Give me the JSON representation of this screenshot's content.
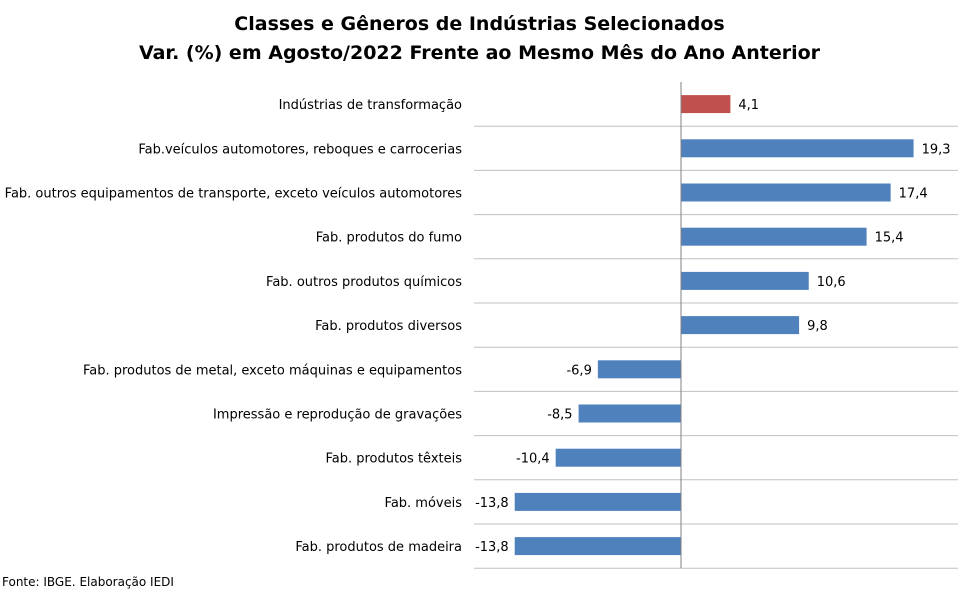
{
  "chart_data": {
    "type": "bar",
    "orientation": "horizontal",
    "title": "Classes e Gêneros de Indústrias Selecionados",
    "subtitle": "Var. (%) em Agosto/2022 Frente ao Mesmo Mês do Ano Anterior",
    "categories": [
      "Indústrias de transformação",
      "Fab.veículos automotores, reboques e carrocerias",
      "Fab. outros equipamentos de transporte, exceto veículos automotores",
      "Fab. produtos do fumo",
      "Fab. outros produtos químicos",
      "Fab. produtos diversos",
      "Fab. produtos de metal, exceto máquinas e equipamentos",
      "Impressão e reprodução de gravações",
      "Fab. produtos têxteis",
      "Fab. móveis",
      "Fab. produtos de madeira"
    ],
    "values": [
      4.1,
      19.3,
      17.4,
      15.4,
      10.6,
      9.8,
      -6.9,
      -8.5,
      -10.4,
      -13.8,
      -13.8
    ],
    "value_labels": [
      "4,1",
      "19,3",
      "17,4",
      "15,4",
      "10,6",
      "9,8",
      "-6,9",
      "-8,5",
      "-10,4",
      "-13,8",
      "-13,8"
    ],
    "colors": {
      "highlight": "#C0504D",
      "default": "#4F81BD",
      "gridline": "#C0C0C0",
      "axis": "#808080"
    },
    "highlight_index": 0,
    "grid": true,
    "legend": "none"
  },
  "source": "Fonte: IBGE. Elaboração IEDI"
}
